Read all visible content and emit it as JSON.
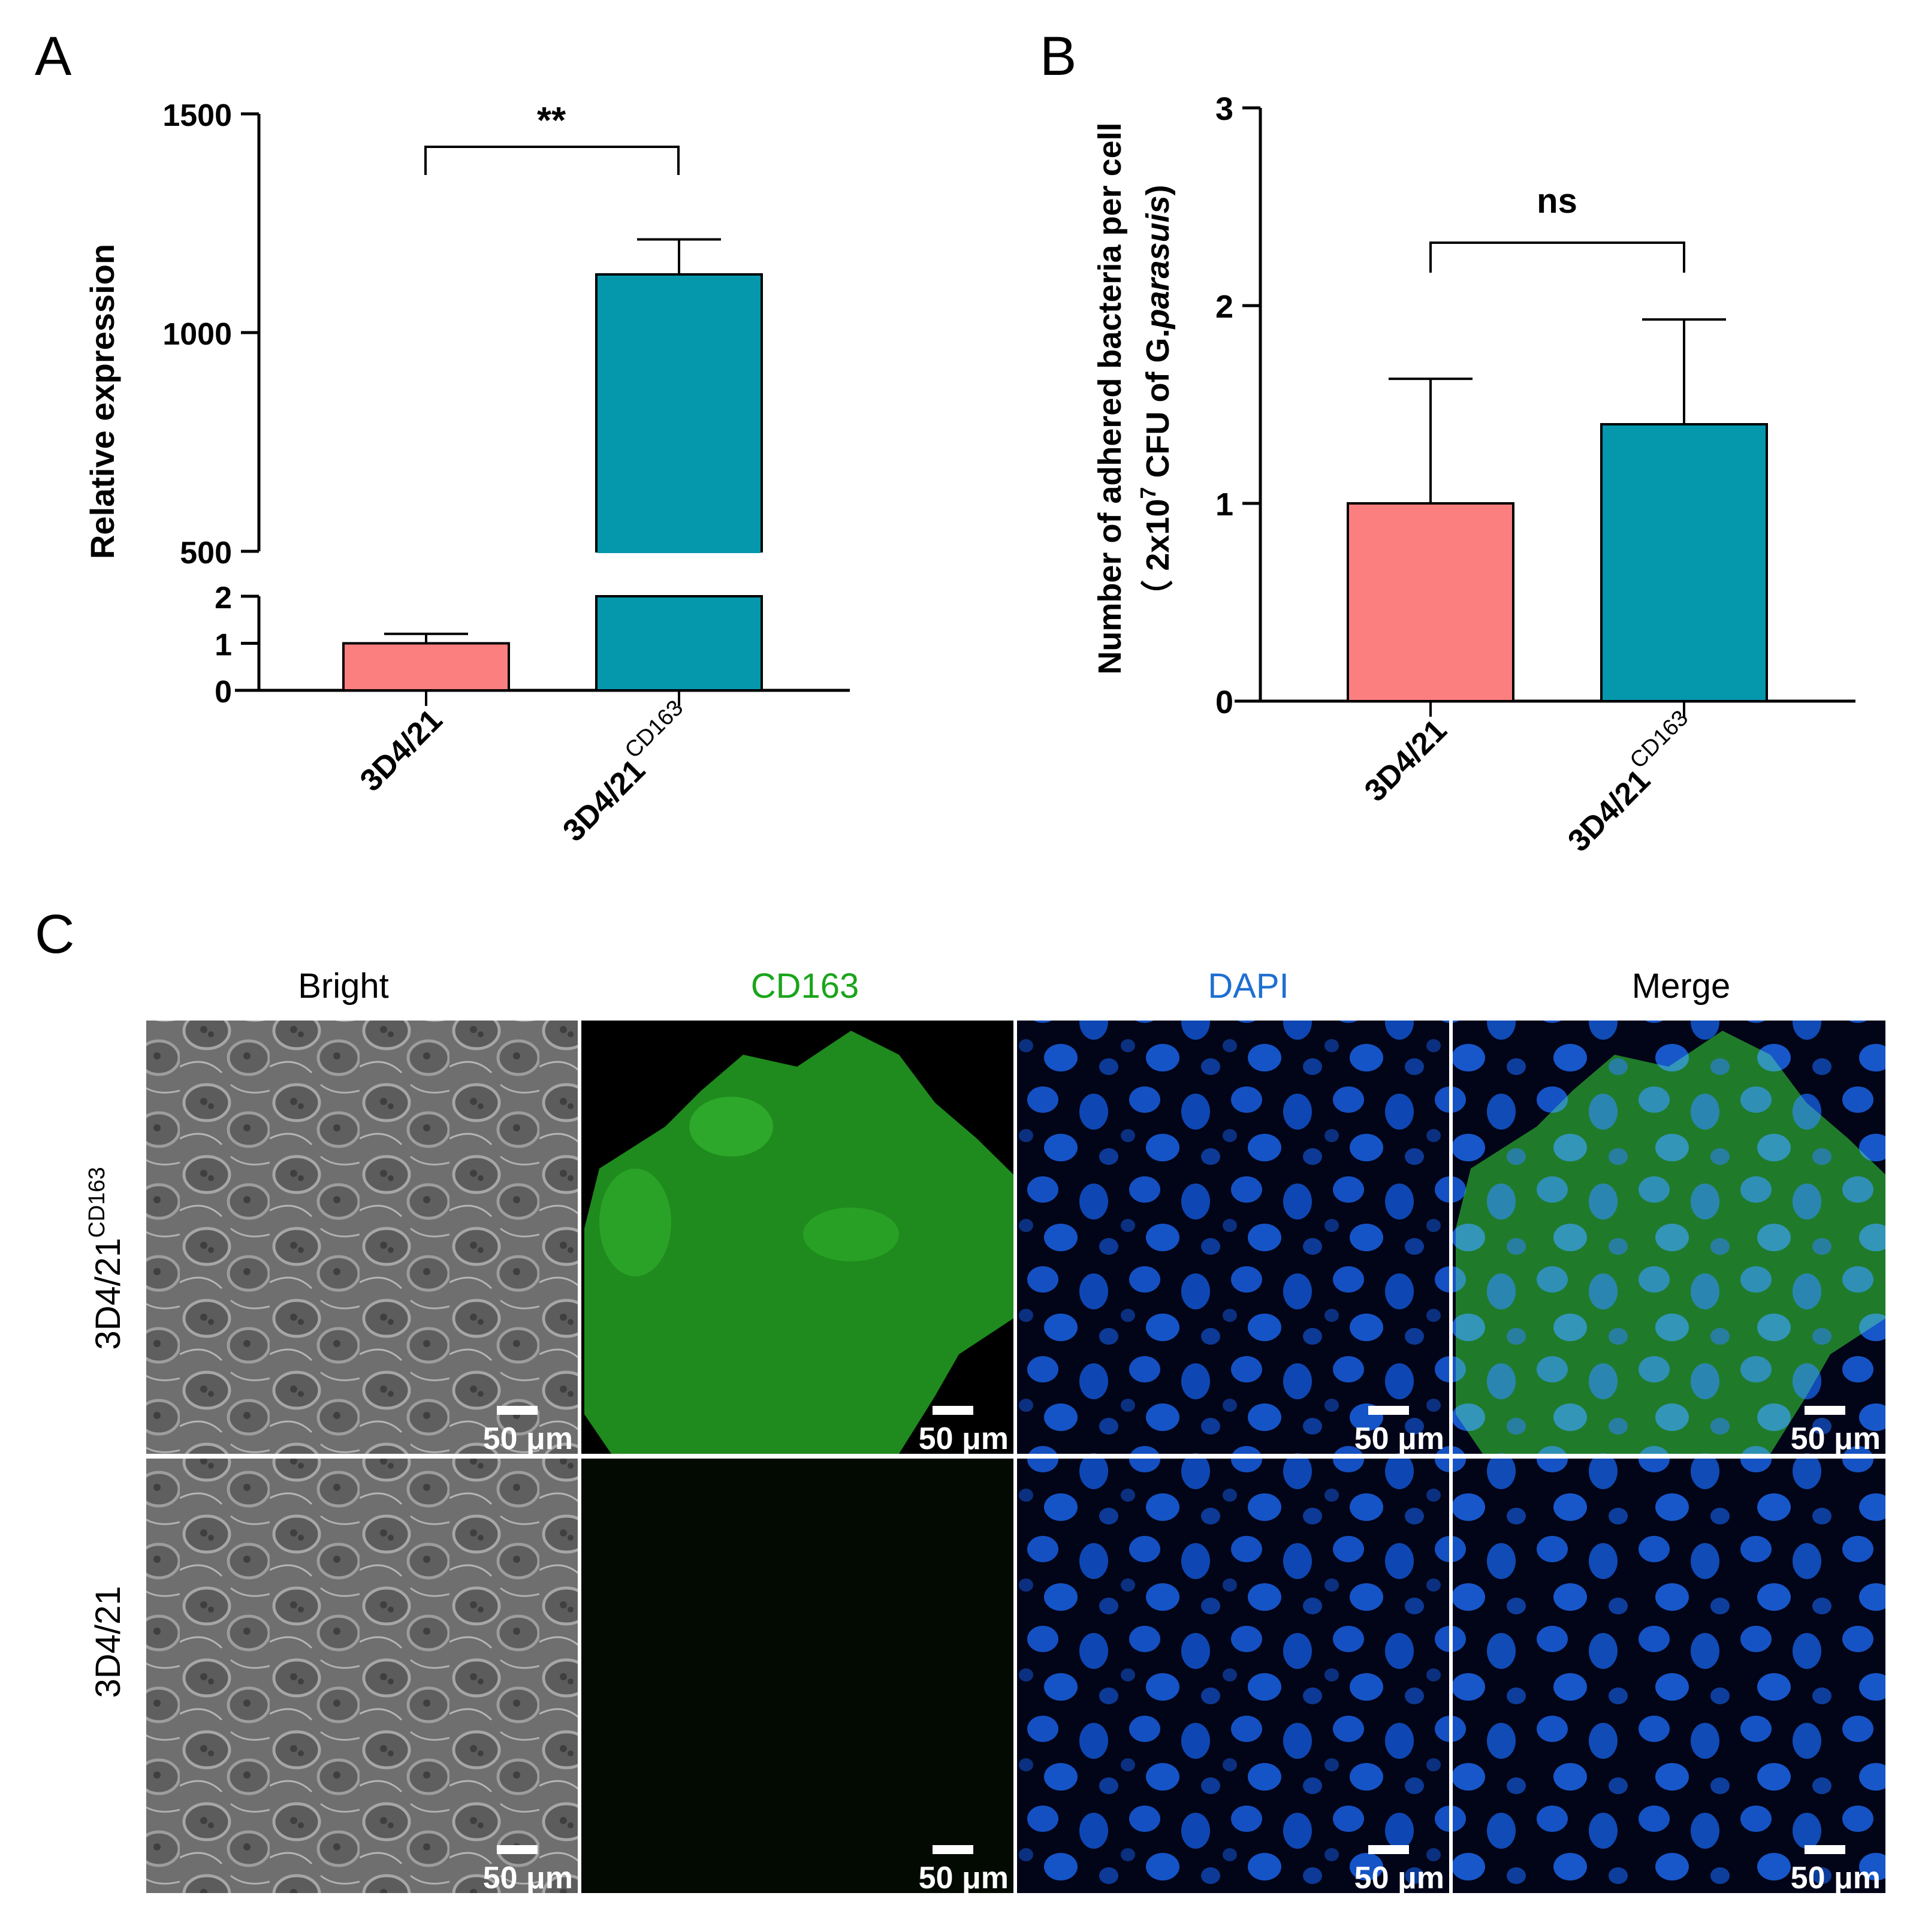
{
  "panels": {
    "a": {
      "letter": "A"
    },
    "b": {
      "letter": "B"
    },
    "c": {
      "letter": "C"
    }
  },
  "colors": {
    "control": "#fb7f7f",
    "cd163": "#0598ad",
    "cd163_stain": "#26b81d",
    "dapi": "#0a63cf"
  },
  "chart_data": [
    {
      "type": "bar",
      "panel": "A",
      "ylabel": "Relative expression",
      "categories": [
        "3D4/21",
        "3D4/21"
      ],
      "category_superscripts": [
        "",
        "CD163"
      ],
      "values": [
        1.0,
        1133
      ],
      "error_bars": [
        0.2,
        80
      ],
      "bar_colors": [
        "#fb7f7f",
        "#0598ad"
      ],
      "axis_break": {
        "lower_range": [
          0,
          2
        ],
        "upper_range": [
          500,
          1500
        ]
      },
      "lower_ticks": [
        "0",
        "1",
        "2"
      ],
      "upper_ticks": [
        "500",
        "1000",
        "1500"
      ],
      "significance": "**"
    },
    {
      "type": "bar",
      "panel": "B",
      "ylabel_line1": "Number of adhered bacteria per cell",
      "ylabel_line2_pre": "（ 2x10",
      "ylabel_line2_sup": "7",
      "ylabel_line2_mid": " CFU of G.",
      "ylabel_line2_italic": "parasuis",
      "ylabel_line2_post": ")",
      "categories": [
        "3D4/21",
        "3D4/21"
      ],
      "category_superscripts": [
        "",
        "CD163"
      ],
      "values": [
        1.0,
        1.4
      ],
      "error_bars": [
        0.63,
        0.53
      ],
      "bar_colors": [
        "#fb7f7f",
        "#0598ad"
      ],
      "ylim": [
        0,
        3
      ],
      "ticks": [
        "0",
        "1",
        "2",
        "3"
      ],
      "significance": "ns"
    }
  ],
  "micrographs": {
    "columns": [
      "Bright",
      "CD163",
      "DAPI",
      "Merge"
    ],
    "column_colors": [
      "#000000",
      "#1aa51a",
      "#1f6fd1",
      "#000000"
    ],
    "rows": [
      {
        "label": "3D4/21",
        "label_sup": "CD163"
      },
      {
        "label": "3D4/21",
        "label_sup": ""
      }
    ],
    "scale_bar": "50 μm"
  }
}
